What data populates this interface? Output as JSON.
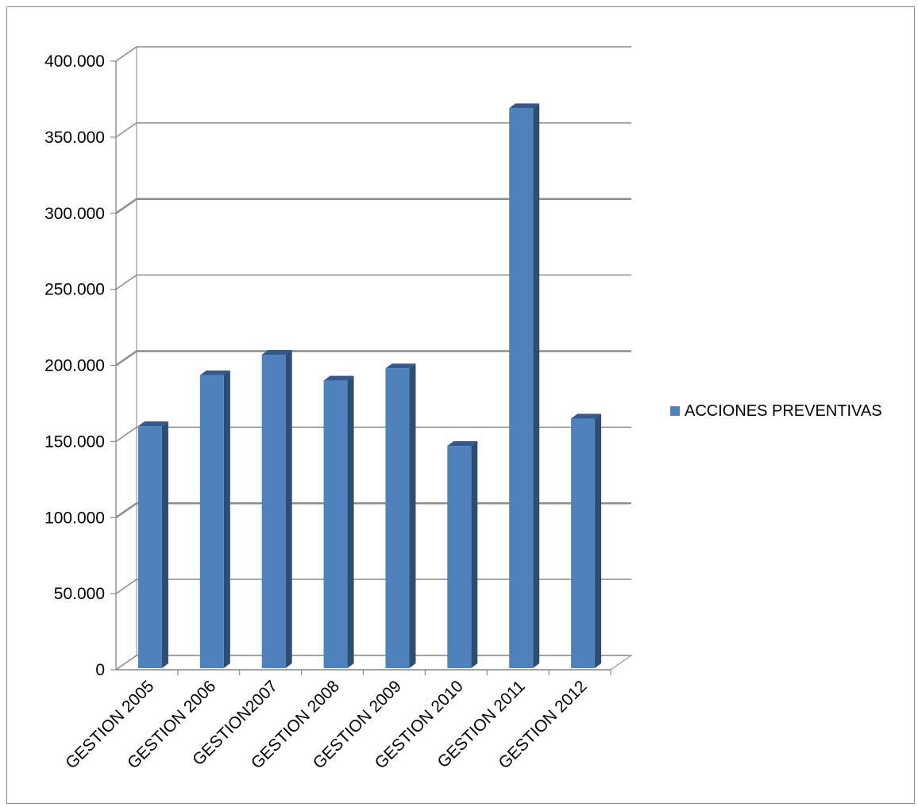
{
  "chart_data": {
    "type": "bar",
    "title": "",
    "xlabel": "",
    "ylabel": "",
    "categories": [
      "GESTION 2005",
      "GESTION 2006",
      "GESTION2007",
      "GESTION 2008",
      "GESTION 2009",
      "GESTION 2010",
      "GESTION 2011",
      "GESTION 2012"
    ],
    "series": [
      {
        "name": "ACCIONES PREVENTIVAS",
        "values": [
          159000,
          192500,
          206000,
          189000,
          197000,
          146000,
          368000,
          164000
        ],
        "color": "#4f81bd"
      }
    ],
    "ylim": [
      0,
      400000
    ],
    "y_ticks": [
      0,
      50000,
      100000,
      150000,
      200000,
      250000,
      300000,
      350000,
      400000
    ],
    "y_tick_labels": [
      "0",
      "50.000",
      "100.000",
      "150.000",
      "200.000",
      "250.000",
      "300.000",
      "350.000",
      "400.000"
    ],
    "grid": true,
    "three_d": true,
    "legend_position": "right"
  }
}
